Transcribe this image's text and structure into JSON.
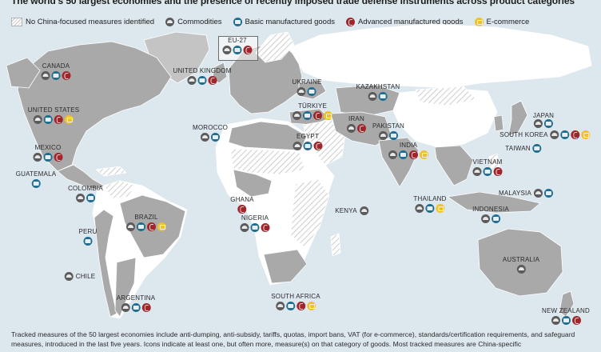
{
  "title": "The world's 50 largest economies and the presence of recently imposed trade defense instruments across product categories",
  "legend": {
    "no_measures": "No China-focused measures identified",
    "commodities": "Commodities",
    "basic": "Basic manufactured goods",
    "advanced": "Advanced manufactured goods",
    "ecommerce": "E-commerce"
  },
  "colors": {
    "ocean": "#dde7ee",
    "measures_land": "#a9a9a9",
    "no_measures_land": "#ffffff",
    "other_land": "#bcbcbc",
    "commodities": "#5b5b5b",
    "basic": "#1f6d8f",
    "advanced": "#a0262b",
    "ecommerce": "#f0c02a"
  },
  "countries": [
    {
      "name": "EU-27",
      "icons": [
        "commodities",
        "basic",
        "advanced"
      ]
    },
    {
      "name": "CANADA",
      "icons": [
        "commodities",
        "basic",
        "advanced"
      ]
    },
    {
      "name": "UNITED KINGDOM",
      "icons": [
        "commodities",
        "basic",
        "advanced"
      ]
    },
    {
      "name": "UKRAINE",
      "icons": [
        "commodities",
        "basic"
      ]
    },
    {
      "name": "KAZAKHSTAN",
      "icons": [
        "commodities",
        "basic"
      ]
    },
    {
      "name": "UNITED STATES",
      "icons": [
        "commodities",
        "basic",
        "advanced",
        "ecommerce"
      ]
    },
    {
      "name": "TÜRKIYE",
      "icons": [
        "commodities",
        "basic",
        "advanced",
        "ecommerce"
      ]
    },
    {
      "name": "JAPAN",
      "icons": [
        "commodities",
        "basic"
      ]
    },
    {
      "name": "IRAN",
      "icons": [
        "commodities",
        "advanced"
      ]
    },
    {
      "name": "PAKISTAN",
      "icons": [
        "commodities",
        "basic"
      ]
    },
    {
      "name": "MOROCCO",
      "icons": [
        "commodities",
        "basic"
      ]
    },
    {
      "name": "EGYPT",
      "icons": [
        "commodities",
        "basic",
        "advanced"
      ]
    },
    {
      "name": "SOUTH KOREA",
      "icons": [
        "commodities",
        "basic",
        "advanced",
        "ecommerce"
      ]
    },
    {
      "name": "MEXICO",
      "icons": [
        "commodities",
        "basic",
        "advanced"
      ]
    },
    {
      "name": "TAIWAN",
      "icons": [
        "basic"
      ]
    },
    {
      "name": "INDIA",
      "icons": [
        "commodities",
        "basic",
        "advanced",
        "ecommerce"
      ]
    },
    {
      "name": "VIETNAM",
      "icons": [
        "commodities",
        "basic",
        "advanced"
      ]
    },
    {
      "name": "GUATEMALA",
      "icons": [
        "basic"
      ]
    },
    {
      "name": "COLOMBIA",
      "icons": [
        "commodities",
        "basic"
      ]
    },
    {
      "name": "MALAYSIA",
      "icons": [
        "commodities",
        "basic"
      ]
    },
    {
      "name": "GHANA",
      "icons": [
        "advanced"
      ]
    },
    {
      "name": "THAILAND",
      "icons": [
        "commodities",
        "basic",
        "ecommerce"
      ]
    },
    {
      "name": "KENYA",
      "icons": [
        "commodities"
      ]
    },
    {
      "name": "INDONESIA",
      "icons": [
        "commodities",
        "basic"
      ]
    },
    {
      "name": "NIGERIA",
      "icons": [
        "commodities",
        "basic",
        "advanced"
      ]
    },
    {
      "name": "BRAZIL",
      "icons": [
        "commodities",
        "basic",
        "advanced",
        "ecommerce"
      ]
    },
    {
      "name": "PERU",
      "icons": [
        "basic"
      ]
    },
    {
      "name": "AUSTRALIA",
      "icons": [
        "commodities"
      ]
    },
    {
      "name": "CHILE",
      "icons": [
        "commodities"
      ]
    },
    {
      "name": "SOUTH AFRICA",
      "icons": [
        "commodities",
        "basic",
        "advanced",
        "ecommerce"
      ]
    },
    {
      "name": "ARGENTINA",
      "icons": [
        "commodities",
        "basic",
        "advanced"
      ]
    },
    {
      "name": "NEW ZEALAND",
      "icons": [
        "commodities",
        "basic",
        "advanced"
      ]
    }
  ],
  "footnote": "Tracked measures of the 50 largest economies include anti-dumping, anti-subsidy, tariffs, quotas, import bans, VAT (for e-commerce), standards/certification requirements, and safeguard measures, introduced in the last five years. Icons indicate at least one, but often more, measure(s) on that category of goods. Most tracked measures are China-specific"
}
